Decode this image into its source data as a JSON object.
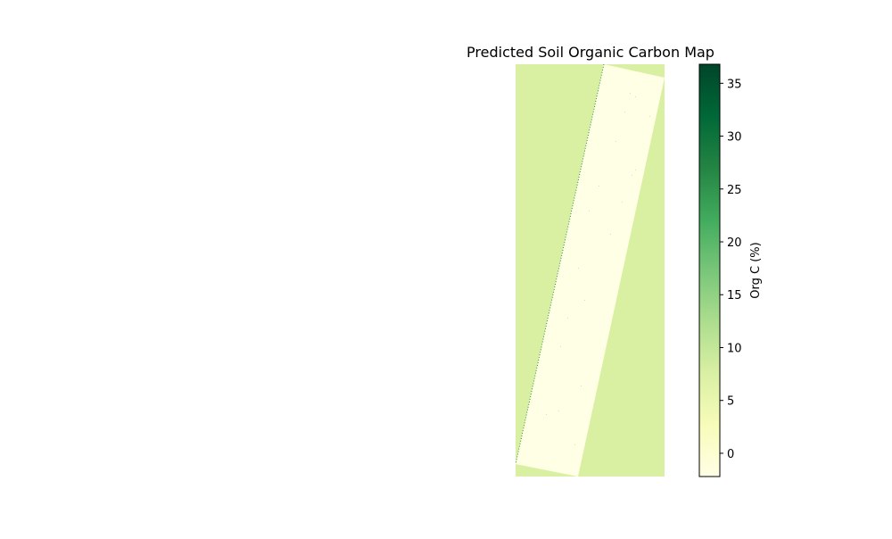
{
  "chart_data": {
    "type": "heatmap",
    "title": "Predicted Soil Organic Carbon Map",
    "colormap": "YlGn",
    "colorbar": {
      "label": "Org C (%)",
      "range": [
        -2.2,
        36.8
      ],
      "ticks": [
        0,
        5,
        10,
        15,
        20,
        25,
        30,
        35
      ],
      "tick_labels": [
        "0",
        "5",
        "10",
        "15",
        "20",
        "25",
        "30",
        "35"
      ]
    },
    "regions": [
      {
        "name": "background",
        "value": 9.5,
        "color": "#d9f0a3"
      },
      {
        "name": "swath",
        "value": -1.5,
        "color": "#ffffe5"
      }
    ],
    "axes_visible": false
  }
}
